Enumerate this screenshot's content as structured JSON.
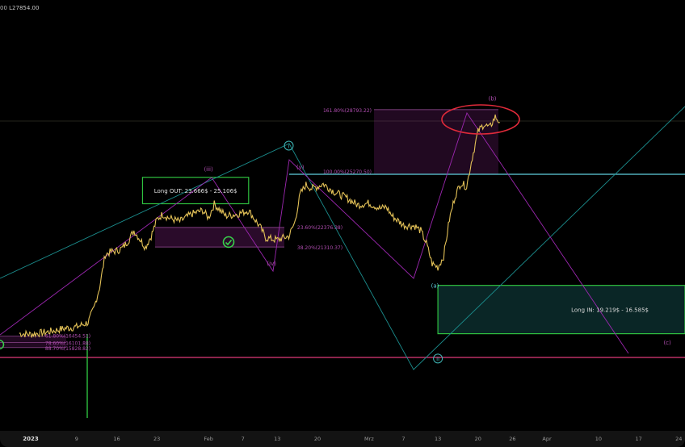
{
  "header": {
    "prefix": "00",
    "last_label": "L27854.00"
  },
  "chart_data": {
    "type": "line",
    "title": "",
    "xlabel": "",
    "ylabel": "",
    "grid": false,
    "legend": "none",
    "x_ticks": [
      {
        "label": "2023",
        "t": 0
      },
      {
        "label": "9",
        "t": 8
      },
      {
        "label": "16",
        "t": 15
      },
      {
        "label": "23",
        "t": 22
      },
      {
        "label": "Feb",
        "t": 31
      },
      {
        "label": "7",
        "t": 37
      },
      {
        "label": "13",
        "t": 43
      },
      {
        "label": "20",
        "t": 50
      },
      {
        "label": "Mrz",
        "t": 59
      },
      {
        "label": "7",
        "t": 65
      },
      {
        "label": "13",
        "t": 71
      },
      {
        "label": "20",
        "t": 78
      },
      {
        "label": "26",
        "t": 84
      },
      {
        "label": "Apr",
        "t": 90
      },
      {
        "label": "10",
        "t": 99
      },
      {
        "label": "17",
        "t": 106
      },
      {
        "label": "24",
        "t": 113
      }
    ],
    "price_series": {
      "name": "",
      "color": "#e3c157",
      "points": [
        [
          -2,
          16600
        ],
        [
          0,
          16550
        ],
        [
          3,
          16680
        ],
        [
          6,
          16880
        ],
        [
          8,
          16950
        ],
        [
          10,
          17200
        ],
        [
          11,
          17950
        ],
        [
          12,
          19100
        ],
        [
          13,
          20900
        ],
        [
          14,
          21050
        ],
        [
          15,
          21100
        ],
        [
          16,
          21250
        ],
        [
          17,
          21650
        ],
        [
          18,
          22200
        ],
        [
          20,
          21300
        ],
        [
          21,
          21900
        ],
        [
          22,
          22800
        ],
        [
          23,
          23100
        ],
        [
          24,
          22900
        ],
        [
          26,
          22700
        ],
        [
          28,
          23100
        ],
        [
          30,
          23300
        ],
        [
          31,
          22900
        ],
        [
          32,
          23650
        ],
        [
          34,
          23000
        ],
        [
          36,
          23100
        ],
        [
          38,
          23300
        ],
        [
          40,
          22400
        ],
        [
          41,
          21800
        ],
        [
          43,
          21700
        ],
        [
          45,
          21900
        ],
        [
          46,
          22600
        ],
        [
          47,
          24200
        ],
        [
          48,
          24700
        ],
        [
          49,
          24500
        ],
        [
          50,
          24600
        ],
        [
          51,
          24750
        ],
        [
          53,
          24300
        ],
        [
          55,
          24000
        ],
        [
          57,
          23600
        ],
        [
          59,
          23700
        ],
        [
          61,
          23400
        ],
        [
          62,
          23500
        ],
        [
          63,
          23000
        ],
        [
          65,
          22500
        ],
        [
          67,
          22450
        ],
        [
          68,
          22200
        ],
        [
          69,
          21500
        ],
        [
          70,
          20400
        ],
        [
          71,
          20200
        ],
        [
          72,
          20800
        ],
        [
          73,
          22800
        ],
        [
          74,
          24100
        ],
        [
          75,
          24800
        ],
        [
          76,
          24600
        ],
        [
          77,
          26200
        ],
        [
          78,
          27600
        ],
        [
          79,
          28000
        ],
        [
          80,
          27800
        ],
        [
          81,
          28400
        ],
        [
          81.8,
          28100
        ]
      ]
    },
    "levels": [
      {
        "label": "161.80%(28793.22)",
        "value": 28793.22
      },
      {
        "label": "100.00%(25270.50)",
        "value": 25270.5
      },
      {
        "label": "23.60%(22376.38)",
        "value": 22376.38
      },
      {
        "label": "38.20%(21310.37)",
        "value": 21310.37
      },
      {
        "label": "61.80%(16454.51)",
        "value": 16454.51
      },
      {
        "label": "78.60%(16101.88)",
        "value": 16101.88
      },
      {
        "label": "88.70%(15828.82)",
        "value": 15828.82
      }
    ],
    "zones": [
      {
        "label": "Long OUT: 23.666$ - 25.106$",
        "low": 23666,
        "high": 25106,
        "t0": 19.5,
        "t1": 38
      },
      {
        "label": "Long IN: 19.219$ - 16.585$",
        "low": 16585,
        "high": 19219,
        "t0": 71,
        "t1": 120
      }
    ],
    "wave_labels": [
      {
        "label": "(iii)",
        "t": 31,
        "value": 25450
      },
      {
        "label": "(iv)",
        "t": 42,
        "value": 20300
      },
      {
        "label": "(v)",
        "t": 47,
        "value": 25550
      },
      {
        "label": "(a)",
        "t": 70.5,
        "value": 19100
      },
      {
        "label": "(b)",
        "t": 80.5,
        "value": 29300
      },
      {
        "label": "(c)",
        "t": 111,
        "value": 16000
      },
      {
        "label": "i",
        "t": 45,
        "value": 26700
      },
      {
        "label": "ii",
        "t": 71,
        "value": 15100
      }
    ],
    "colors": {
      "price": "#e3c157",
      "magenta": "#9c27b0",
      "teal": "#1b8d8d",
      "cyan": "#5fd0de",
      "green": "#2fc13f",
      "red": "#e02a3a",
      "pink": "#e03a7a"
    }
  }
}
